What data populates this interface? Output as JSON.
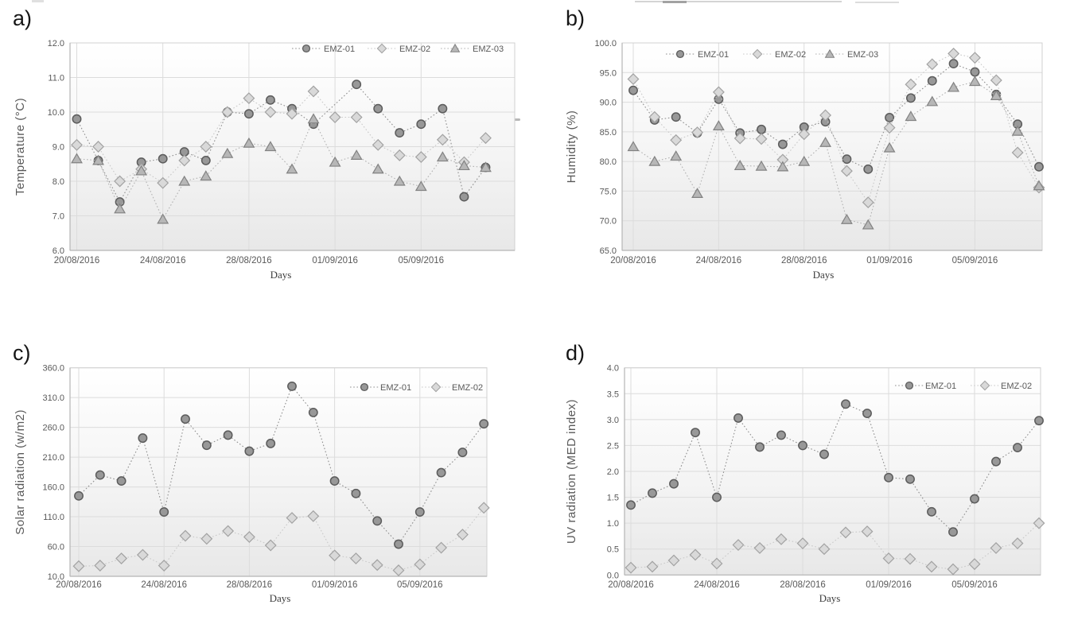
{
  "figure": {
    "description_visible_text_only": "Four line charts labelled a, b, c, d showing environmental measurements per day",
    "x_axis_title": "Days"
  },
  "palette": {
    "emz01_line": "#8f8f8f",
    "emz01_fill": "#989898",
    "emz01_stroke": "#5c5c5c",
    "emz02_line": "#c9c9c9",
    "emz02_fill": "#d9d9d9",
    "emz02_stroke": "#a2a2a2",
    "emz03_line": "#b2b2b2",
    "emz03_fill": "#b7b7b7",
    "emz03_stroke": "#828282",
    "grid": "#dcdcdc",
    "axis": "#b5b5b5",
    "plot_border": "#d0d0d0",
    "tick_text": "#595959",
    "title_text": "#595959",
    "days_text": "#3c3c3c",
    "plot_bg_top": "#ffffff",
    "plot_bg_mid": "#f4f4f4",
    "plot_bg_bottom": "#e8e8e8"
  },
  "chart_data": [
    {
      "id": "a",
      "panel_label": "a)",
      "type": "line",
      "title": "",
      "xlabel": "Days",
      "ylabel": "Temperature (°C)",
      "ylim": [
        6.0,
        12.0
      ],
      "grid": true,
      "legend_position": "top-right-inside",
      "x": [
        "20/08/2016",
        "21/08/2016",
        "22/08/2016",
        "23/08/2016",
        "24/08/2016",
        "25/08/2016",
        "26/08/2016",
        "27/08/2016",
        "28/08/2016",
        "29/08/2016",
        "30/08/2016",
        "31/08/2016",
        "01/09/2016",
        "02/09/2016",
        "03/09/2016",
        "04/09/2016",
        "05/09/2016",
        "06/09/2016",
        "07/09/2016",
        "08/09/2016"
      ],
      "x_tick_labels": [
        "20/08/2016",
        "24/08/2016",
        "28/08/2016",
        "01/09/2016",
        "05/09/2016"
      ],
      "y_tick_labels": [
        "12.0",
        "11.0",
        "10.0",
        "9.0",
        "8.0",
        "7.0",
        "6.0"
      ],
      "series": [
        {
          "name": "EMZ-01",
          "marker": "circle",
          "values": [
            9.8,
            8.6,
            7.4,
            8.55,
            8.65,
            8.85,
            8.6,
            10.0,
            9.95,
            10.35,
            10.1,
            9.65,
            null,
            10.8,
            10.1,
            9.4,
            9.65,
            10.1,
            7.55,
            8.4
          ]
        },
        {
          "name": "EMZ-02",
          "marker": "diamond",
          "values": [
            9.05,
            9.0,
            8.0,
            8.35,
            7.95,
            8.6,
            9.0,
            10.0,
            10.4,
            10.0,
            9.95,
            10.6,
            9.85,
            9.85,
            9.05,
            8.75,
            8.7,
            9.2,
            8.55,
            9.25
          ]
        },
        {
          "name": "EMZ-03",
          "marker": "triangle",
          "values": [
            8.65,
            8.6,
            7.2,
            8.3,
            6.9,
            8.0,
            8.15,
            8.8,
            9.1,
            9.0,
            8.35,
            9.8,
            8.55,
            8.75,
            8.35,
            8.0,
            7.85,
            8.7,
            8.45,
            8.4
          ]
        }
      ]
    },
    {
      "id": "b",
      "panel_label": "b)",
      "type": "line",
      "title": "",
      "xlabel": "Days",
      "ylabel": "Humidity (%)",
      "ylim": [
        65.0,
        100.0
      ],
      "grid": true,
      "legend_position": "top-left-inside",
      "x": [
        "20/08/2016",
        "21/08/2016",
        "22/08/2016",
        "23/08/2016",
        "24/08/2016",
        "25/08/2016",
        "26/08/2016",
        "27/08/2016",
        "28/08/2016",
        "29/08/2016",
        "30/08/2016",
        "31/08/2016",
        "01/09/2016",
        "02/09/2016",
        "03/09/2016",
        "04/09/2016",
        "05/09/2016",
        "06/09/2016",
        "07/09/2016",
        "08/09/2016"
      ],
      "x_tick_labels": [
        "20/08/2016",
        "24/08/2016",
        "28/08/2016",
        "01/09/2016",
        "05/09/2016"
      ],
      "y_tick_labels": [
        "100.0",
        "95.0",
        "90.0",
        "85.0",
        "80.0",
        "75.0",
        "70.0",
        "65.0"
      ],
      "series": [
        {
          "name": "EMZ-01",
          "marker": "circle",
          "values": [
            92.0,
            87.0,
            87.5,
            84.8,
            90.5,
            84.8,
            85.4,
            82.9,
            85.8,
            86.7,
            80.4,
            78.7,
            87.4,
            90.7,
            93.6,
            96.5,
            95.1,
            91.3,
            86.3,
            79.1
          ]
        },
        {
          "name": "EMZ-02",
          "marker": "diamond",
          "values": [
            93.9,
            87.5,
            83.6,
            84.9,
            91.7,
            83.9,
            83.8,
            80.3,
            84.6,
            87.8,
            78.4,
            73.1,
            85.7,
            93.0,
            96.4,
            98.2,
            97.5,
            93.7,
            81.5,
            75.6
          ]
        },
        {
          "name": "EMZ-03",
          "marker": "triangle",
          "values": [
            82.5,
            80.0,
            80.9,
            74.6,
            86.0,
            79.3,
            79.2,
            79.1,
            80.0,
            83.2,
            70.2,
            69.3,
            82.3,
            87.6,
            90.1,
            92.5,
            93.5,
            91.1,
            85.1,
            75.9
          ]
        }
      ]
    },
    {
      "id": "c",
      "panel_label": "c)",
      "type": "line",
      "title": "",
      "xlabel": "Days",
      "ylabel": "Solar radiation (w/m2)",
      "ylim": [
        10.0,
        360.0
      ],
      "grid": true,
      "legend_position": "top-right-inside",
      "x": [
        "20/08/2016",
        "21/08/2016",
        "22/08/2016",
        "23/08/2016",
        "24/08/2016",
        "25/08/2016",
        "26/08/2016",
        "27/08/2016",
        "28/08/2016",
        "29/08/2016",
        "30/08/2016",
        "31/08/2016",
        "01/09/2016",
        "02/09/2016",
        "03/09/2016",
        "04/09/2016",
        "05/09/2016",
        "06/09/2016",
        "07/09/2016",
        "08/09/2016"
      ],
      "x_tick_labels": [
        "20/08/2016",
        "24/08/2016",
        "28/08/2016",
        "01/09/2016",
        "05/09/2016"
      ],
      "y_tick_labels": [
        "360.0",
        "310.0",
        "260.0",
        "210.0",
        "160.0",
        "110.0",
        "60.0",
        "10.0"
      ],
      "series": [
        {
          "name": "EMZ-01",
          "marker": "circle",
          "values": [
            145,
            180,
            170,
            242,
            118,
            274,
            230,
            247,
            220,
            233,
            329,
            285,
            170,
            149,
            103,
            64,
            118,
            184,
            218,
            266
          ]
        },
        {
          "name": "EMZ-02",
          "marker": "diamond",
          "values": [
            27,
            28,
            40,
            46,
            28,
            78,
            73,
            86,
            76,
            62,
            108,
            111,
            45,
            40,
            29,
            20,
            30,
            58,
            80,
            125
          ]
        }
      ]
    },
    {
      "id": "d",
      "panel_label": "d)",
      "type": "line",
      "title": "",
      "xlabel": "Days",
      "ylabel": "UV radiation (MED index)",
      "ylim": [
        0.0,
        4.0
      ],
      "grid": true,
      "legend_position": "top-right-inside",
      "x": [
        "20/08/2016",
        "21/08/2016",
        "22/08/2016",
        "23/08/2016",
        "24/08/2016",
        "25/08/2016",
        "26/08/2016",
        "27/08/2016",
        "28/08/2016",
        "29/08/2016",
        "30/08/2016",
        "31/08/2016",
        "01/09/2016",
        "02/09/2016",
        "03/09/2016",
        "04/09/2016",
        "05/09/2016",
        "06/09/2016",
        "07/09/2016",
        "08/09/2016"
      ],
      "x_tick_labels": [
        "20/08/2016",
        "24/08/2016",
        "28/08/2016",
        "01/09/2016",
        "05/09/2016"
      ],
      "y_tick_labels": [
        "4.0",
        "3.5",
        "3.0",
        "2.5",
        "2.0",
        "1.5",
        "1.0",
        "0.5",
        "0.0"
      ],
      "series": [
        {
          "name": "EMZ-01",
          "marker": "circle",
          "values": [
            1.35,
            1.58,
            1.76,
            2.75,
            1.5,
            3.03,
            2.47,
            2.7,
            2.5,
            2.33,
            3.3,
            3.12,
            1.88,
            1.85,
            1.22,
            0.83,
            1.47,
            2.19,
            2.46,
            2.98
          ]
        },
        {
          "name": "EMZ-02",
          "marker": "diamond",
          "values": [
            0.14,
            0.16,
            0.28,
            0.39,
            0.22,
            0.58,
            0.52,
            0.69,
            0.61,
            0.5,
            0.82,
            0.84,
            0.32,
            0.31,
            0.16,
            0.11,
            0.21,
            0.52,
            0.61,
            1.0
          ]
        }
      ]
    }
  ]
}
